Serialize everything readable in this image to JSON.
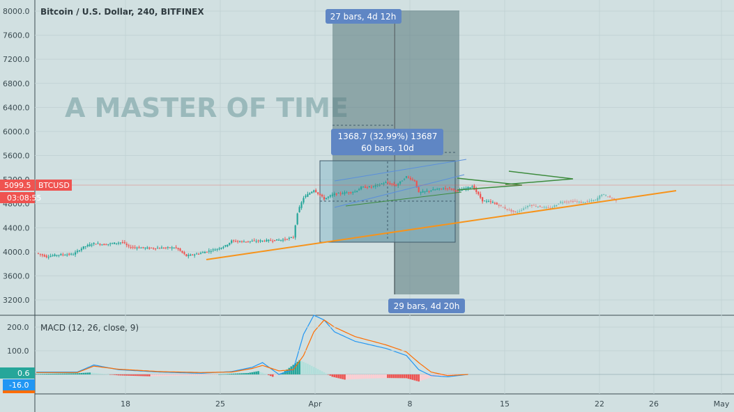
{
  "symbol_title": "Bitcoin / U.S. Dollar, 240, BITFINEX",
  "watermark": "A MASTER OF TIME",
  "price_tag": {
    "value": "5099.5",
    "symbol": "BTCUSD",
    "countdown": "03:08:55"
  },
  "measure_labels": {
    "top_range": "27 bars, 4d 12h",
    "bottom_range": "29 bars, 4d 20h",
    "box_line1": "1368.7 (32.99%) 13687",
    "box_line2": "60 bars, 10d"
  },
  "macd": {
    "title": "MACD (12, 26, close, 9)",
    "tag_hist": "0.6",
    "tag_signal": "-16.0"
  },
  "colors": {
    "background": "#d1e0e1",
    "up": "#26a69a",
    "down": "#ef5350",
    "trendline": "#f7931a",
    "triangle": "#3d8b3d",
    "channel": "#5b8fdb",
    "macd_line": "#2196f3",
    "signal_line": "#ff6d00",
    "label_bg": "#5f86c4"
  },
  "chart_data": {
    "type": "candlestick",
    "title": "Bitcoin / U.S. Dollar, 240, BITFINEX",
    "ylim": [
      3000,
      8000
    ],
    "y_ticks": [
      "8000.0",
      "7600.0",
      "7200.0",
      "6800.0",
      "6400.0",
      "6000.0",
      "5600.0",
      "5200.0",
      "4800.0",
      "4400.0",
      "4000.0",
      "3600.0",
      "3200.0"
    ],
    "x_ticks": [
      "18",
      "25",
      "Apr",
      "8",
      "15",
      "22",
      "26",
      "May"
    ],
    "grid": true,
    "price_path": [
      [
        0,
        3980
      ],
      [
        5,
        3920
      ],
      [
        10,
        3950
      ],
      [
        18,
        3960
      ],
      [
        23,
        4080
      ],
      [
        28,
        4140
      ],
      [
        33,
        4120
      ],
      [
        38,
        4145
      ],
      [
        42,
        4160
      ],
      [
        45,
        4080
      ],
      [
        55,
        4060
      ],
      [
        68,
        4070
      ],
      [
        73,
        3930
      ],
      [
        80,
        3980
      ],
      [
        88,
        4050
      ],
      [
        92,
        4100
      ],
      [
        95,
        4180
      ],
      [
        100,
        4170
      ],
      [
        108,
        4180
      ],
      [
        120,
        4200
      ],
      [
        125,
        4240
      ],
      [
        127,
        4650
      ],
      [
        130,
        4900
      ],
      [
        135,
        5030
      ],
      [
        140,
        4880
      ],
      [
        145,
        4960
      ],
      [
        155,
        5000
      ],
      [
        158,
        5070
      ],
      [
        163,
        5080
      ],
      [
        170,
        5150
      ],
      [
        175,
        5100
      ],
      [
        180,
        5250
      ],
      [
        184,
        5180
      ],
      [
        186,
        4980
      ],
      [
        190,
        5010
      ],
      [
        195,
        5040
      ],
      [
        200,
        5060
      ],
      [
        205,
        5010
      ],
      [
        212,
        5090
      ],
      [
        215,
        4950
      ],
      [
        217,
        4850
      ],
      [
        222,
        4820
      ],
      [
        228,
        4720
      ],
      [
        233,
        4650
      ],
      [
        240,
        4780
      ],
      [
        245,
        4750
      ],
      [
        250,
        4720
      ],
      [
        255,
        4830
      ],
      [
        262,
        4840
      ],
      [
        265,
        4820
      ],
      [
        272,
        4860
      ],
      [
        275,
        4960
      ],
      [
        282,
        4860
      ]
    ],
    "macd": {
      "ylim": [
        -40,
        260
      ],
      "y_ticks": [
        "200.0",
        "100.0"
      ],
      "macd_line": [
        [
          0,
          10
        ],
        [
          20,
          10
        ],
        [
          28,
          40
        ],
        [
          40,
          20
        ],
        [
          60,
          10
        ],
        [
          80,
          5
        ],
        [
          95,
          12
        ],
        [
          105,
          30
        ],
        [
          110,
          50
        ],
        [
          118,
          0
        ],
        [
          125,
          20
        ],
        [
          130,
          170
        ],
        [
          135,
          250
        ],
        [
          140,
          230
        ],
        [
          145,
          180
        ],
        [
          155,
          140
        ],
        [
          170,
          110
        ],
        [
          180,
          80
        ],
        [
          186,
          20
        ],
        [
          192,
          -5
        ],
        [
          200,
          -10
        ],
        [
          210,
          0
        ]
      ],
      "signal_line": [
        [
          0,
          8
        ],
        [
          20,
          8
        ],
        [
          28,
          35
        ],
        [
          40,
          22
        ],
        [
          60,
          12
        ],
        [
          80,
          8
        ],
        [
          95,
          10
        ],
        [
          105,
          25
        ],
        [
          110,
          38
        ],
        [
          118,
          15
        ],
        [
          125,
          20
        ],
        [
          130,
          80
        ],
        [
          135,
          180
        ],
        [
          140,
          230
        ],
        [
          145,
          200
        ],
        [
          155,
          160
        ],
        [
          170,
          125
        ],
        [
          180,
          95
        ],
        [
          186,
          50
        ],
        [
          192,
          10
        ],
        [
          200,
          -5
        ],
        [
          210,
          0
        ]
      ],
      "histogram": [
        [
          0,
          2
        ],
        [
          20,
          5
        ],
        [
          26,
          8
        ],
        [
          40,
          -4
        ],
        [
          55,
          -8
        ],
        [
          70,
          -5
        ],
        [
          80,
          -4
        ],
        [
          95,
          3
        ],
        [
          103,
          6
        ],
        [
          108,
          14
        ],
        [
          115,
          -10
        ],
        [
          120,
          8
        ],
        [
          128,
          60
        ],
        [
          132,
          45
        ],
        [
          138,
          18
        ],
        [
          144,
          -10
        ],
        [
          150,
          -22
        ],
        [
          160,
          -18
        ],
        [
          170,
          -15
        ],
        [
          180,
          -16
        ],
        [
          186,
          -30
        ],
        [
          192,
          -12
        ],
        [
          200,
          -4
        ],
        [
          210,
          1
        ]
      ]
    },
    "annotations": [
      "27 bars, 4d 12h",
      "29 bars, 4d 20h",
      "1368.7 (32.99%) 13687",
      "60 bars, 10d",
      "A MASTER OF TIME"
    ]
  }
}
